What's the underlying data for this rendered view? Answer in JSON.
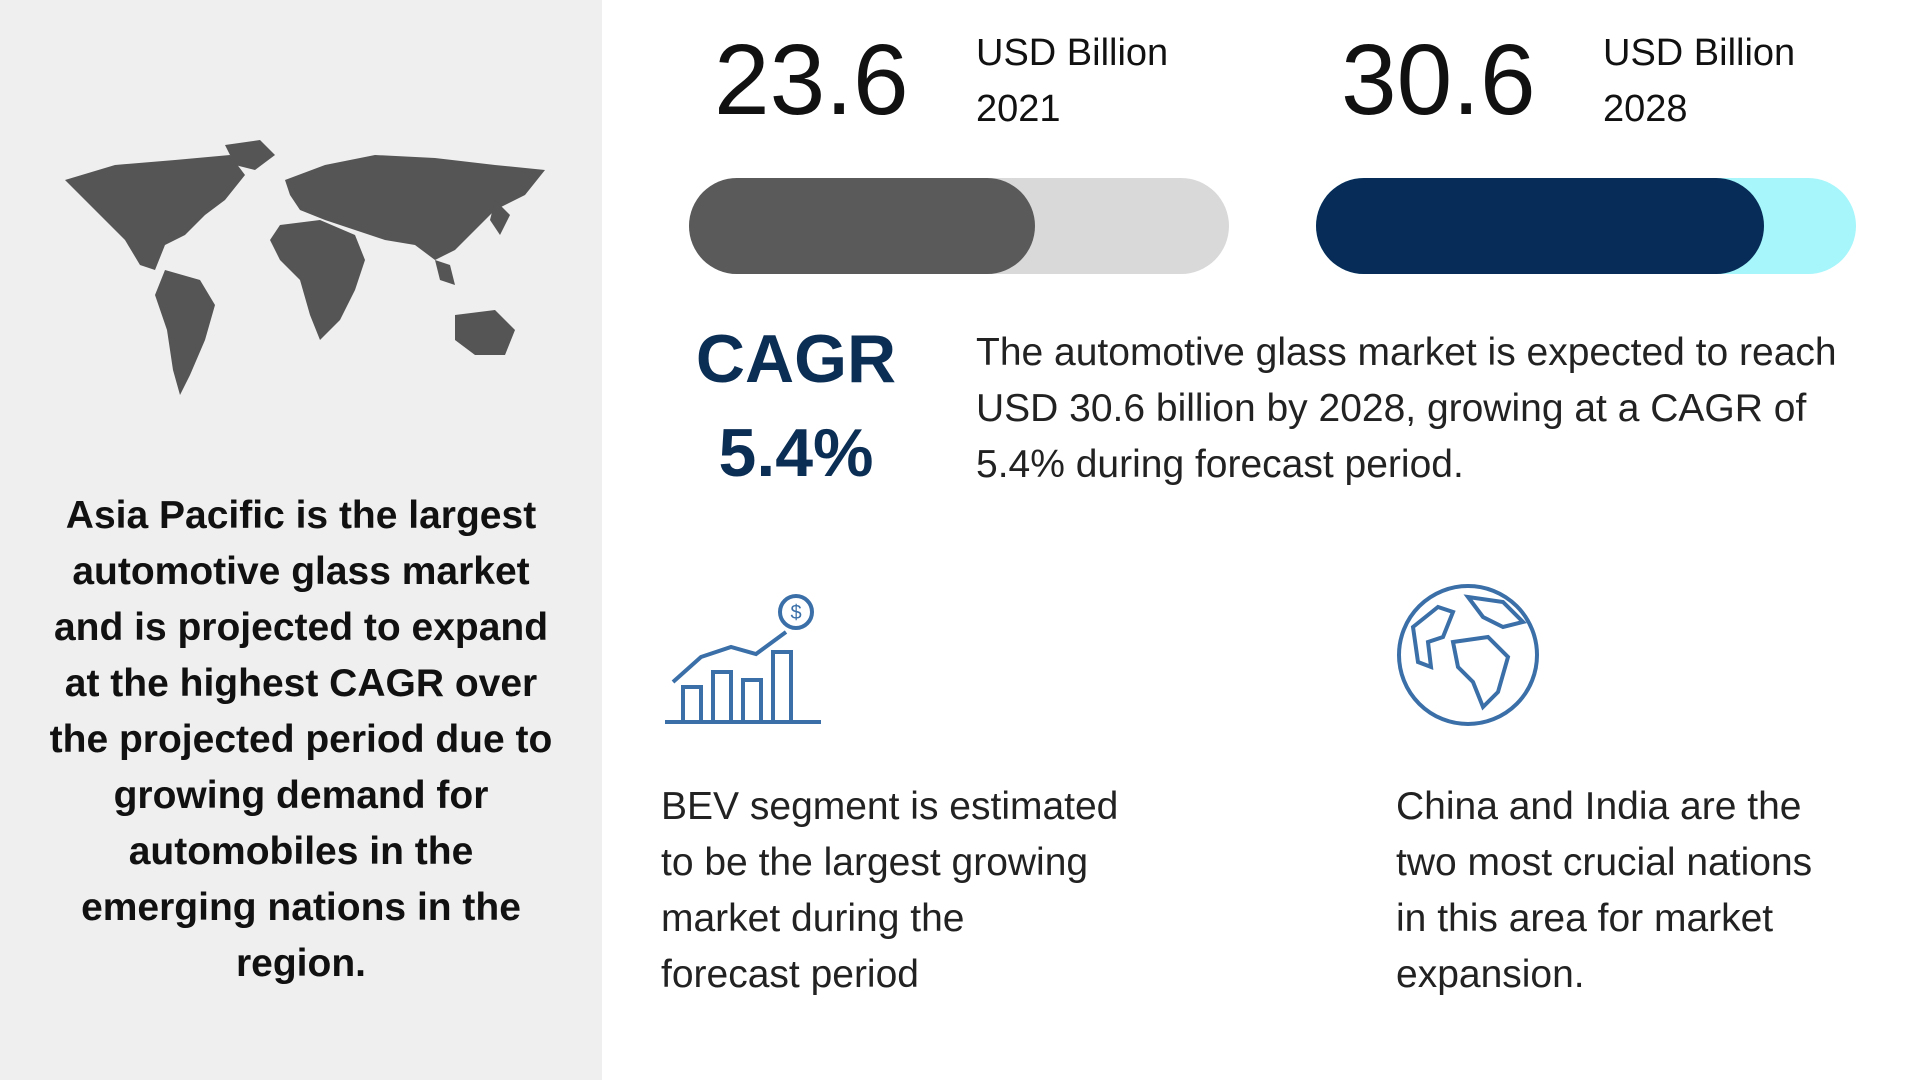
{
  "left_panel": {
    "lines": [
      "Asia Pacific is the largest",
      "automotive glass market",
      "and is projected to expand",
      "at the highest CAGR over",
      "the projected period due to",
      "growing demand for",
      "automobiles in the",
      "emerging nations in the",
      "region."
    ]
  },
  "stats": [
    {
      "value": 23.6,
      "unit": "USD Billion",
      "year": "2021",
      "color": "#5a5a5a",
      "track": "#d9d9d9"
    },
    {
      "value": 30.6,
      "unit": "USD Billion",
      "year": "2028",
      "color": "#062c57",
      "track": "#a6f6fb"
    }
  ],
  "cagr": {
    "label": "CAGR",
    "value": "5.4%",
    "text_lines": [
      "The automotive glass market is expected to reach",
      "USD 30.6 billion by 2028, growing at a CAGR of",
      "5.4% during forecast period."
    ]
  },
  "notes": [
    {
      "lines": [
        "BEV segment is estimated",
        "to be the largest growing",
        "market during the",
        "forecast period"
      ]
    },
    {
      "lines": [
        "China and India are the",
        "two most crucial nations",
        "in this area for market",
        "expansion."
      ]
    }
  ]
}
